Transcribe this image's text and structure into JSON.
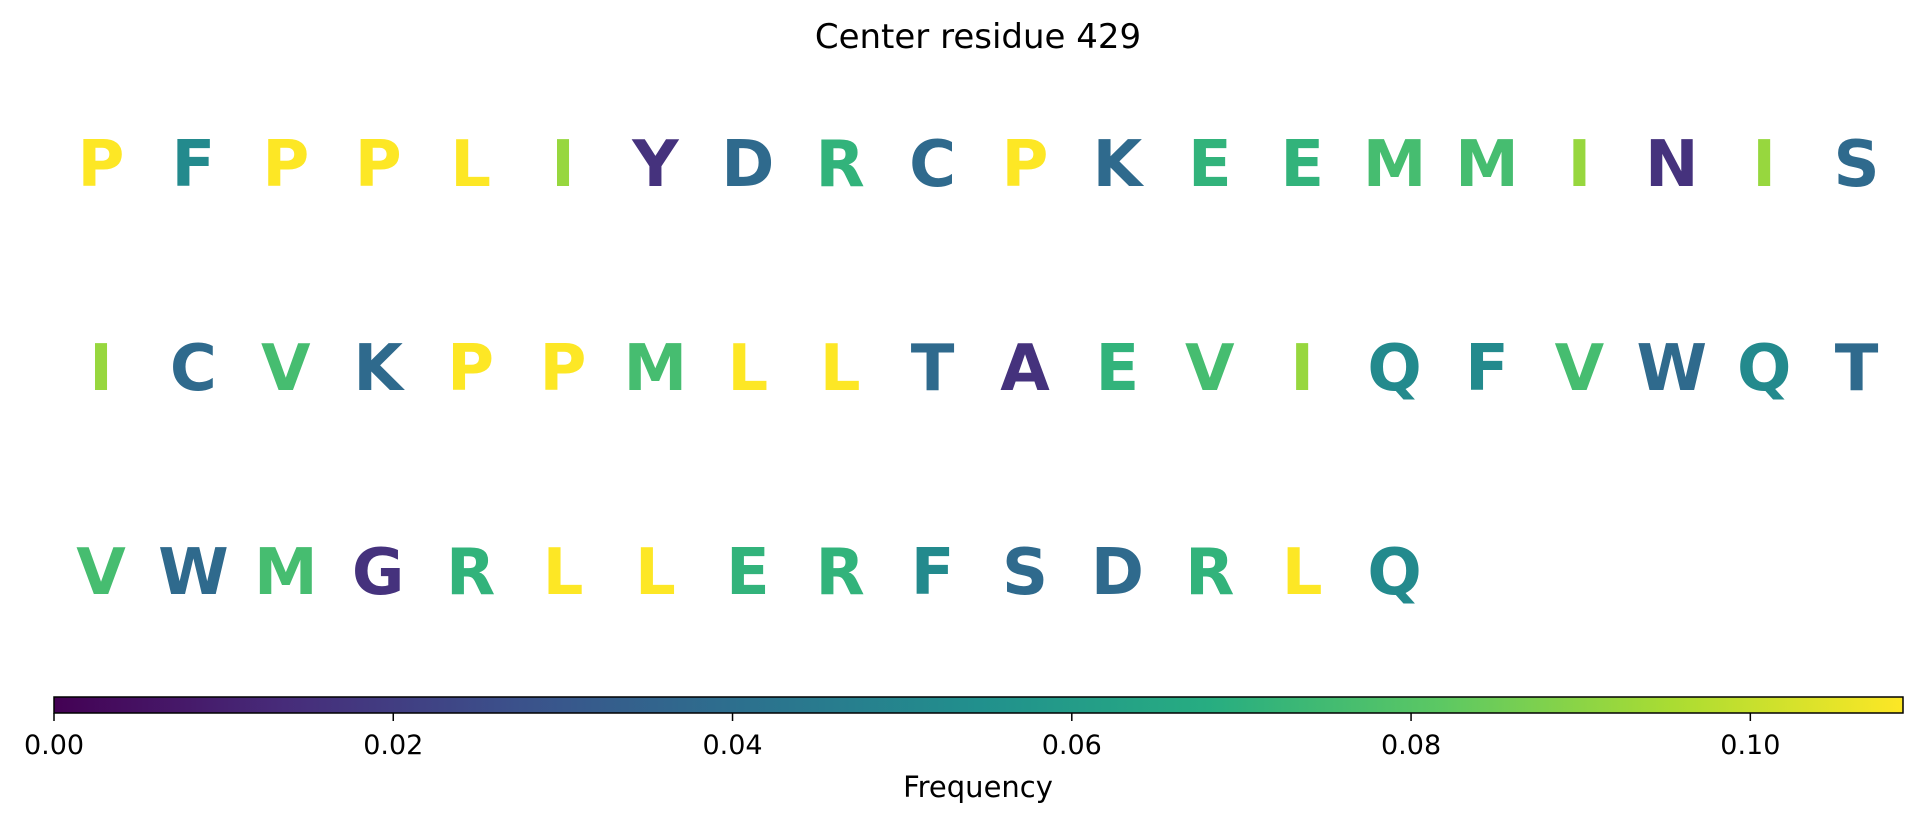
{
  "chart_data": {
    "type": "table",
    "title": "Center residue 429",
    "colormap": "viridis",
    "rows": [
      {
        "letters": [
          "P",
          "F",
          "P",
          "P",
          "L",
          "I",
          "Y",
          "D",
          "R",
          "C",
          "P",
          "K",
          "E",
          "E",
          "M",
          "M",
          "I",
          "N",
          "I",
          "S"
        ],
        "values": [
          0.109,
          0.052,
          0.109,
          0.109,
          0.109,
          0.092,
          0.016,
          0.038,
          0.071,
          0.038,
          0.109,
          0.038,
          0.071,
          0.071,
          0.076,
          0.076,
          0.092,
          0.016,
          0.092,
          0.038
        ]
      },
      {
        "letters": [
          "I",
          "C",
          "V",
          "K",
          "P",
          "P",
          "M",
          "L",
          "L",
          "T",
          "A",
          "E",
          "V",
          "I",
          "Q",
          "F",
          "V",
          "W",
          "Q",
          "T"
        ],
        "values": [
          0.092,
          0.038,
          0.076,
          0.038,
          0.109,
          0.109,
          0.076,
          0.109,
          0.109,
          0.038,
          0.016,
          0.071,
          0.076,
          0.092,
          0.052,
          0.052,
          0.076,
          0.038,
          0.052,
          0.038
        ]
      },
      {
        "letters": [
          "V",
          "W",
          "M",
          "G",
          "R",
          "L",
          "L",
          "E",
          "R",
          "F",
          "S",
          "D",
          "R",
          "L",
          "Q"
        ],
        "values": [
          0.076,
          0.038,
          0.076,
          0.016,
          0.071,
          0.109,
          0.109,
          0.071,
          0.071,
          0.052,
          0.038,
          0.038,
          0.071,
          0.109,
          0.052
        ]
      }
    ],
    "colorbar": {
      "label": "Frequency",
      "range": [
        0.0,
        0.109
      ],
      "ticks": [
        0.0,
        0.02,
        0.04,
        0.06,
        0.08,
        0.1
      ],
      "tick_labels": [
        "0.00",
        "0.02",
        "0.04",
        "0.06",
        "0.08",
        "0.10"
      ]
    }
  }
}
